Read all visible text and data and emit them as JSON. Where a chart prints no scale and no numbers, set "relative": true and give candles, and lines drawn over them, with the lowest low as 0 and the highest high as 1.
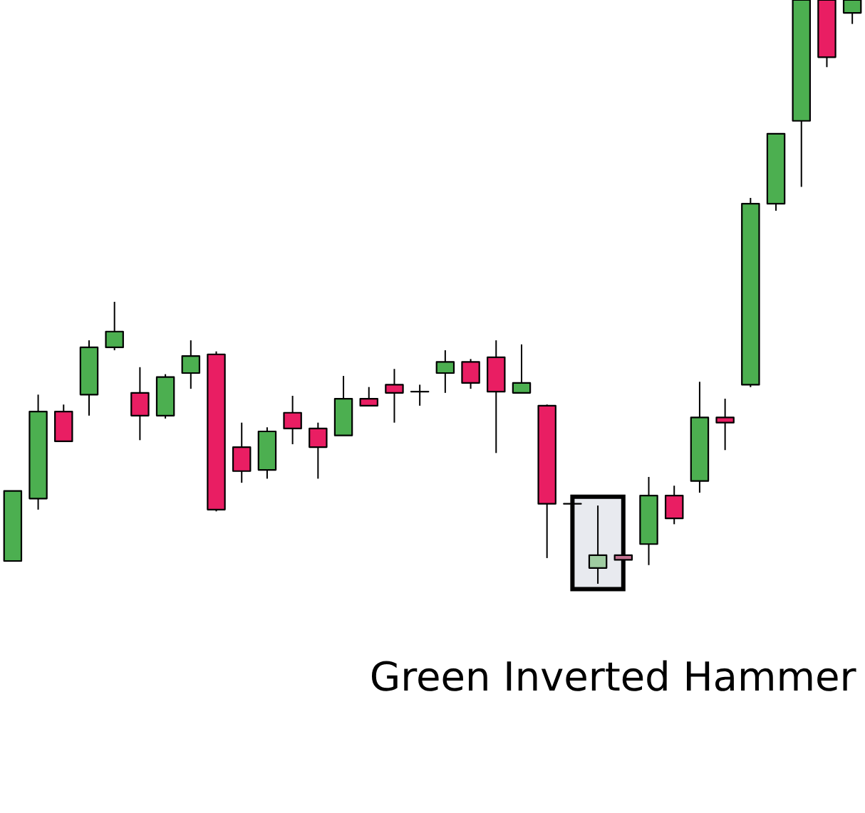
{
  "chart_data": {
    "type": "candlestick",
    "relative": true,
    "categories": [
      null,
      null,
      null,
      null,
      null,
      null,
      null,
      null,
      null,
      null,
      null,
      null,
      null,
      null,
      null,
      null,
      null,
      null,
      null,
      null,
      null,
      null,
      null,
      null,
      null,
      null,
      null,
      null,
      null,
      null,
      null,
      null,
      null,
      null
    ],
    "ohlc": [
      [
        0.039,
        0.159,
        0.039,
        0.159
      ],
      [
        0.146,
        0.324,
        0.127,
        0.295
      ],
      [
        0.295,
        0.307,
        0.244,
        0.244
      ],
      [
        0.324,
        0.417,
        0.288,
        0.405
      ],
      [
        0.405,
        0.483,
        0.4,
        0.432
      ],
      [
        0.327,
        0.371,
        0.246,
        0.288
      ],
      [
        0.288,
        0.359,
        0.283,
        0.354
      ],
      [
        0.361,
        0.417,
        0.334,
        0.39
      ],
      [
        0.393,
        0.398,
        0.124,
        0.127
      ],
      [
        0.234,
        0.276,
        0.173,
        0.193
      ],
      [
        0.195,
        0.268,
        0.18,
        0.261
      ],
      [
        0.293,
        0.322,
        0.239,
        0.266
      ],
      [
        0.266,
        0.276,
        0.18,
        0.234
      ],
      [
        0.254,
        0.356,
        0.254,
        0.317
      ],
      [
        0.317,
        0.337,
        0.305,
        0.305
      ],
      [
        0.341,
        0.368,
        0.276,
        0.327
      ],
      [
        0.329,
        0.341,
        0.305,
        0.329
      ],
      [
        0.361,
        0.4,
        0.327,
        0.38
      ],
      [
        0.38,
        0.385,
        0.334,
        0.344
      ],
      [
        0.388,
        0.417,
        0.224,
        0.329
      ],
      [
        0.327,
        0.41,
        0.327,
        0.344
      ],
      [
        0.305,
        0.307,
        0.044,
        0.137
      ],
      [
        0.137,
        0.137,
        0.137,
        0.137
      ],
      [
        0.027,
        0.134,
        0,
        0.049
      ],
      [
        0.049,
        0.049,
        0.041,
        0.041
      ],
      [
        0.068,
        0.183,
        0.032,
        0.151
      ],
      [
        0.151,
        0.168,
        0.102,
        0.112
      ],
      [
        0.176,
        0.346,
        0.156,
        0.285
      ],
      [
        0.285,
        0.317,
        0.229,
        0.276
      ],
      [
        0.341,
        0.661,
        0.337,
        0.651
      ],
      [
        0.651,
        0.771,
        0.639,
        0.771
      ],
      [
        0.793,
        1,
        0.68,
        1
      ],
      [
        1,
        1,
        0.885,
        0.902
      ],
      [
        0.978,
        1,
        0.959,
        1
      ]
    ],
    "colors": [
      "#4caf50",
      "#4caf50",
      "#e91e63",
      "#4caf50",
      "#4caf50",
      "#e91e63",
      "#4caf50",
      "#4caf50",
      "#e91e63",
      "#e91e63",
      "#4caf50",
      "#e91e63",
      "#e91e63",
      "#4caf50",
      "#e91e63",
      "#e91e63",
      "#000000",
      "#4caf50",
      "#e91e63",
      "#e91e63",
      "#4caf50",
      "#e91e63",
      "#000000",
      "#9fcca1",
      "#c2708f",
      "#4caf50",
      "#e91e63",
      "#4caf50",
      "#e91e63",
      "#4caf50",
      "#4caf50",
      "#4caf50",
      "#e91e63",
      "#4caf50"
    ],
    "annotations": [
      "Green Inverted Hammer"
    ]
  }
}
